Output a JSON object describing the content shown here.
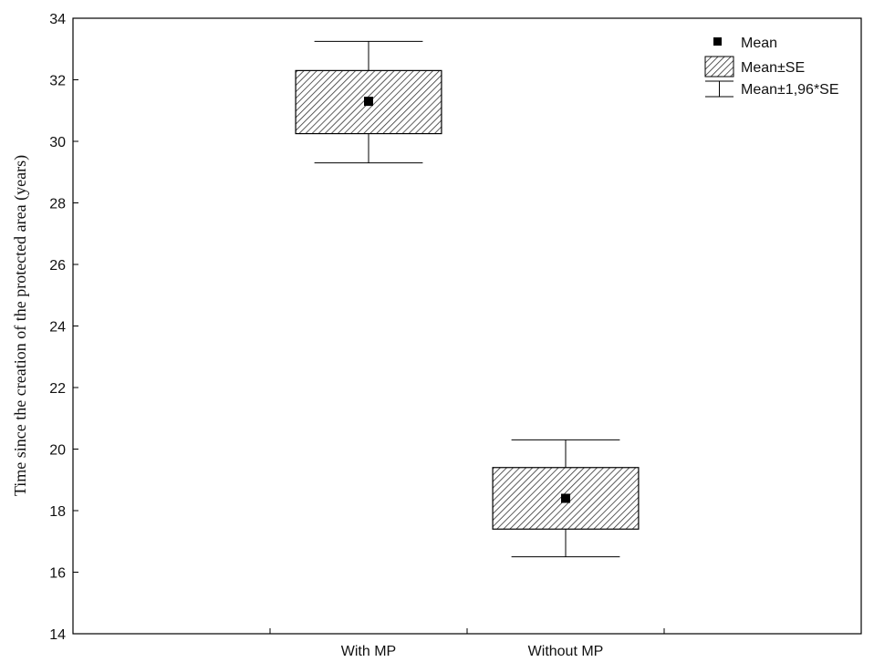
{
  "chart_data": {
    "type": "box",
    "title": "",
    "xlabel": "",
    "ylabel": "Time since the creation of the protected area (years)",
    "ylim": [
      14,
      34
    ],
    "yticks": [
      14,
      16,
      18,
      20,
      22,
      24,
      26,
      28,
      30,
      32,
      34
    ],
    "categories": [
      "With MP",
      "Without MP"
    ],
    "series": [
      {
        "category": "With MP",
        "mean": 31.3,
        "se_low": 30.25,
        "se_high": 32.3,
        "ci_low": 29.3,
        "ci_high": 33.25
      },
      {
        "category": "Without MP",
        "mean": 18.4,
        "se_low": 17.4,
        "se_high": 19.4,
        "ci_low": 16.5,
        "ci_high": 20.3
      }
    ],
    "legend": {
      "position": "top-right",
      "entries": [
        "Mean",
        "Mean±SE",
        "Mean±1,96*SE"
      ]
    },
    "grid": false
  }
}
